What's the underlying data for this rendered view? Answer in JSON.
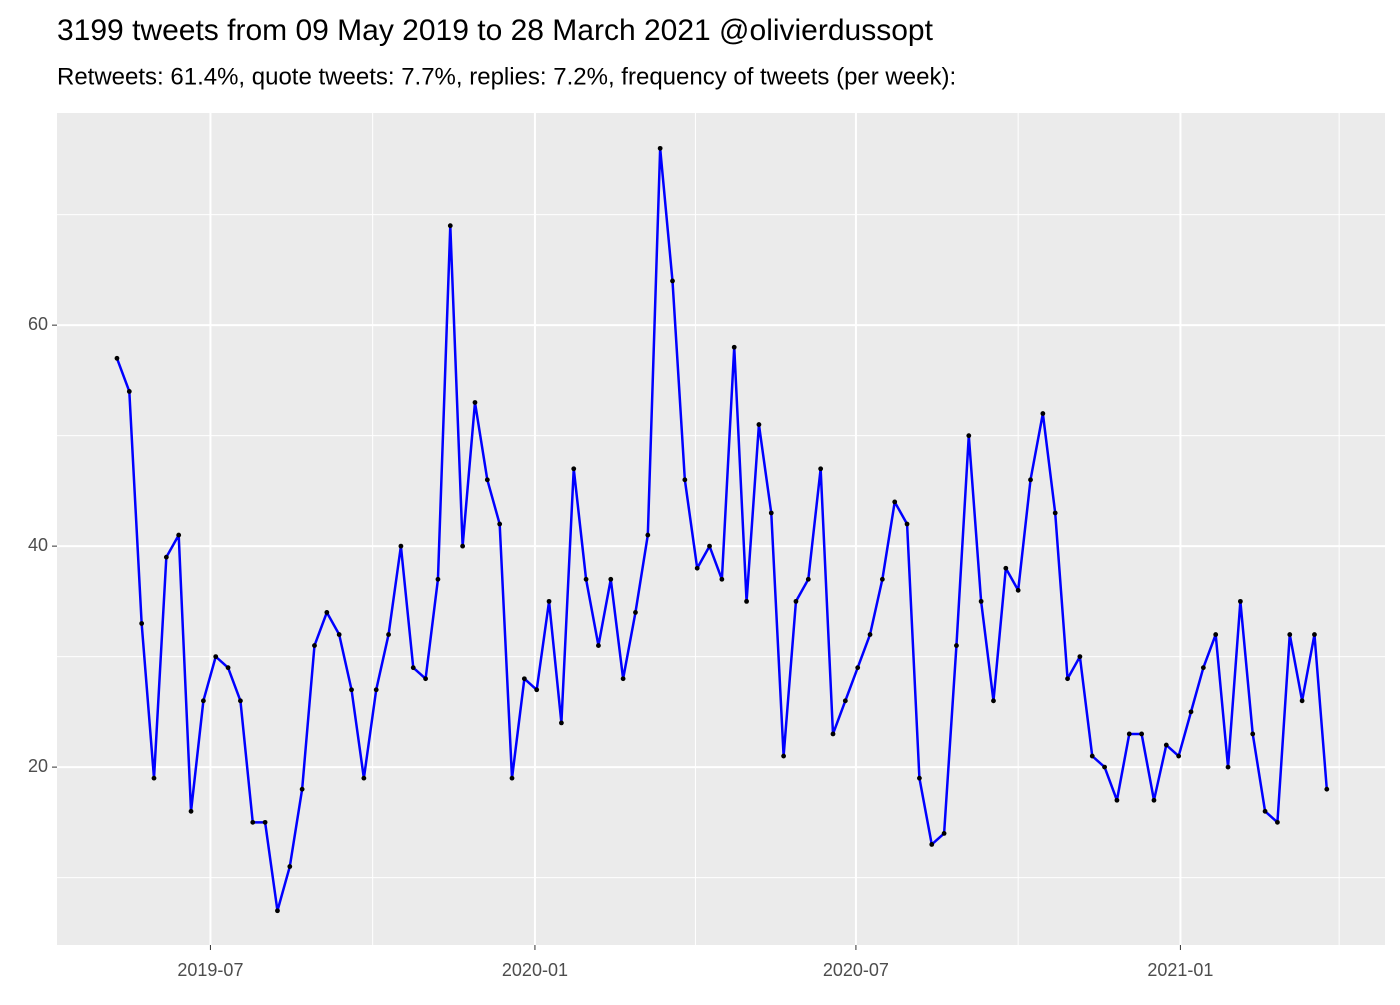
{
  "chart_data": {
    "type": "line",
    "title": "3199 tweets from 09 May 2019 to 28 March 2021 @olivierdussopt",
    "subtitle": "Retweets: 61.4%, quote tweets: 7.7%, replies: 7.2%, frequency of tweets (per week):",
    "x": [
      "2019-05-09",
      "2019-05-16",
      "2019-05-23",
      "2019-05-30",
      "2019-06-06",
      "2019-06-13",
      "2019-06-20",
      "2019-06-27",
      "2019-07-04",
      "2019-07-11",
      "2019-07-18",
      "2019-07-25",
      "2019-08-01",
      "2019-08-08",
      "2019-08-15",
      "2019-08-22",
      "2019-08-29",
      "2019-09-05",
      "2019-09-12",
      "2019-09-19",
      "2019-09-26",
      "2019-10-03",
      "2019-10-10",
      "2019-10-17",
      "2019-10-24",
      "2019-10-31",
      "2019-11-07",
      "2019-11-14",
      "2019-11-21",
      "2019-11-28",
      "2019-12-05",
      "2019-12-12",
      "2019-12-19",
      "2019-12-26",
      "2020-01-02",
      "2020-01-09",
      "2020-01-16",
      "2020-01-23",
      "2020-01-30",
      "2020-02-06",
      "2020-02-13",
      "2020-02-20",
      "2020-02-27",
      "2020-03-05",
      "2020-03-12",
      "2020-03-19",
      "2020-03-26",
      "2020-04-02",
      "2020-04-09",
      "2020-04-16",
      "2020-04-23",
      "2020-04-30",
      "2020-05-07",
      "2020-05-14",
      "2020-05-21",
      "2020-05-28",
      "2020-06-04",
      "2020-06-11",
      "2020-06-18",
      "2020-06-25",
      "2020-07-02",
      "2020-07-09",
      "2020-07-16",
      "2020-07-23",
      "2020-07-30",
      "2020-08-06",
      "2020-08-13",
      "2020-08-20",
      "2020-08-27",
      "2020-09-03",
      "2020-09-10",
      "2020-09-17",
      "2020-09-24",
      "2020-10-01",
      "2020-10-08",
      "2020-10-15",
      "2020-10-22",
      "2020-10-29",
      "2020-11-05",
      "2020-11-12",
      "2020-11-19",
      "2020-11-26",
      "2020-12-03",
      "2020-12-10",
      "2020-12-17",
      "2020-12-24",
      "2020-12-31",
      "2021-01-07",
      "2021-01-14",
      "2021-01-21",
      "2021-01-28",
      "2021-02-04",
      "2021-02-11",
      "2021-02-18",
      "2021-02-25",
      "2021-03-04",
      "2021-03-11",
      "2021-03-18",
      "2021-03-25"
    ],
    "values": [
      57,
      54,
      33,
      19,
      39,
      41,
      16,
      26,
      30,
      29,
      26,
      15,
      15,
      7,
      11,
      18,
      31,
      34,
      32,
      27,
      19,
      27,
      32,
      40,
      29,
      28,
      37,
      69,
      40,
      53,
      46,
      42,
      19,
      28,
      27,
      35,
      24,
      47,
      37,
      31,
      37,
      28,
      34,
      41,
      76,
      64,
      46,
      38,
      40,
      37,
      58,
      35,
      51,
      43,
      21,
      35,
      37,
      47,
      23,
      26,
      29,
      32,
      37,
      44,
      42,
      19,
      13,
      14,
      31,
      50,
      35,
      26,
      38,
      36,
      46,
      52,
      43,
      28,
      30,
      21,
      20,
      17,
      23,
      23,
      17,
      22,
      21,
      25,
      29,
      32,
      20,
      35,
      23,
      16,
      15,
      32,
      26,
      32,
      18
    ],
    "color": "#0000ff",
    "point_color": "#000000",
    "xlim": [
      "2019-04-05",
      "2021-04-27"
    ],
    "xticks": [
      {
        "value": "2019-07-01",
        "label": "2019-07"
      },
      {
        "value": "2020-01-01",
        "label": "2020-01"
      },
      {
        "value": "2020-07-01",
        "label": "2020-07"
      },
      {
        "value": "2021-01-01",
        "label": "2021-01"
      }
    ],
    "xminorticks": [
      "2019-10-01",
      "2020-04-01",
      "2020-10-01",
      "2021-04-01"
    ],
    "ylim": [
      3.9,
      79.2
    ],
    "yticks": [
      20,
      40,
      60
    ],
    "yminorticks": [
      10,
      30,
      50,
      70
    ],
    "grid": true
  }
}
